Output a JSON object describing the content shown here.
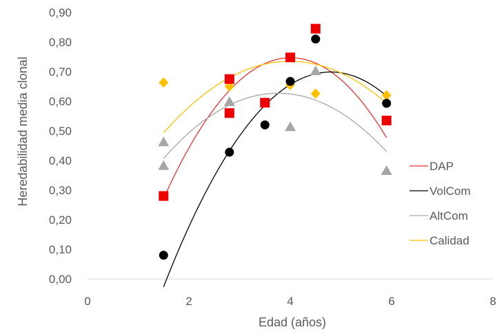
{
  "chart_data": {
    "type": "scatter",
    "title": "",
    "xlabel": "Edad (años)",
    "ylabel": "Heredabilidad media clonal",
    "xlim": [
      0,
      8
    ],
    "ylim": [
      0,
      0.9
    ],
    "x_ticks": [
      "0",
      "2",
      "4",
      "6",
      "8"
    ],
    "y_ticks": [
      "0,00",
      "0,10",
      "0,20",
      "0,30",
      "0,40",
      "0,50",
      "0,60",
      "0,70",
      "0,80",
      "0,90"
    ],
    "grid": false,
    "legend_position": "right",
    "series": [
      {
        "name": "DAP",
        "marker": "square",
        "color": "#ee0000",
        "trend_color": "#e83030",
        "x": [
          1.5,
          2.8,
          2.8,
          3.5,
          4.0,
          4.5,
          5.9
        ],
        "y": [
          0.28,
          0.675,
          0.56,
          0.595,
          0.748,
          0.845,
          0.535
        ],
        "trendline": [
          -0.0755,
          0.6054,
          -0.4667
        ]
      },
      {
        "name": "VolCom",
        "marker": "circle",
        "color": "#000000",
        "trend_color": "#000000",
        "x": [
          1.5,
          2.8,
          3.5,
          4.0,
          4.5,
          5.9
        ],
        "y": [
          0.08,
          0.428,
          0.52,
          0.667,
          0.81,
          0.593
        ],
        "trendline": [
          -0.0667,
          0.6401,
          -0.837
        ]
      },
      {
        "name": "AltCom",
        "marker": "triangle",
        "color": "#a6a6a6",
        "trend_color": "#a6a6a6",
        "x": [
          1.5,
          1.5,
          2.8,
          4.0,
          4.5,
          5.9
        ],
        "y": [
          0.462,
          0.382,
          0.598,
          0.513,
          0.702,
          0.365
        ],
        "trendline": [
          -0.0431,
          0.3242,
          0.0174
        ]
      },
      {
        "name": "Calidad",
        "marker": "diamond",
        "color": "#ffc000",
        "trend_color": "#ffc000",
        "x": [
          1.5,
          2.8,
          4.0,
          4.5,
          5.9
        ],
        "y": [
          0.663,
          0.65,
          0.655,
          0.626,
          0.62
        ],
        "trendline": [
          -0.0389,
          0.3107,
          0.1145
        ]
      }
    ]
  }
}
